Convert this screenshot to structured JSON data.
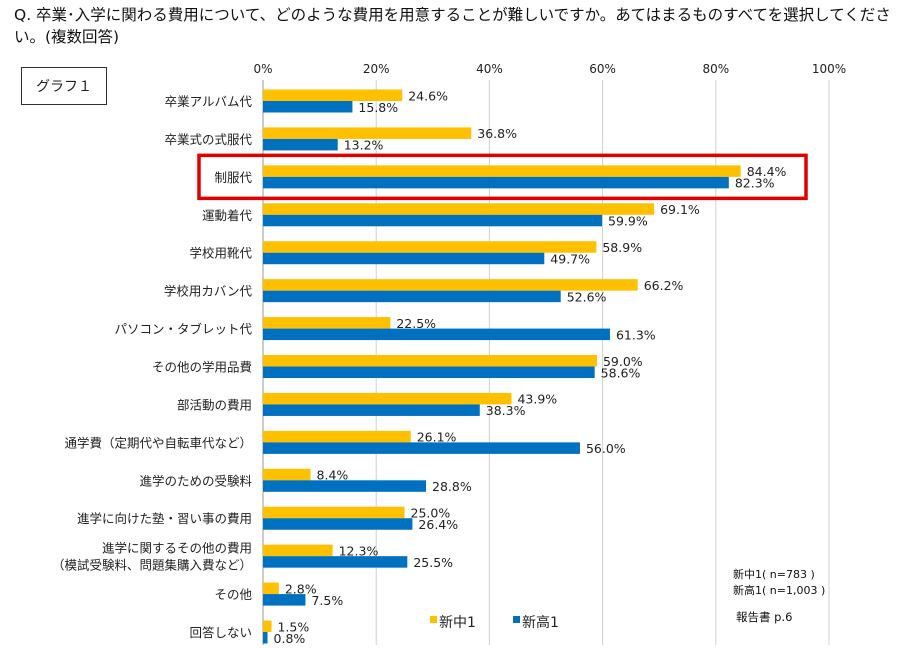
{
  "question": "Q. 卒業･入学に関わる費用について、どのような費用を用意することが難しいですか。あてはまるものすべてを選択してください。(複数回答)",
  "graph_label": "グラフ１",
  "notes": {
    "n1": "新中1( n=783 )",
    "n2": "新高1( n=1,003 )",
    "source": "報告書 p.6"
  },
  "highlight_category": "制服代",
  "chart_data": {
    "type": "bar",
    "orientation": "horizontal",
    "xlim": [
      0,
      100
    ],
    "ticks": [
      "0%",
      "20%",
      "40%",
      "60%",
      "80%",
      "100%"
    ],
    "grid": true,
    "legend": "bottom-center",
    "categories": [
      "卒業アルバム代",
      "卒業式の式服代",
      "制服代",
      "運動着代",
      "学校用靴代",
      "学校用カバン代",
      "パソコン・タブレット代",
      "その他の学用品費",
      "部活動の費用",
      "通学費（定期代や自転車代など）",
      "進学のための受験料",
      "進学に向けた塾・習い事の費用",
      "進学に関するその他の費用\n（模試受験料、問題集購入費など）",
      "その他",
      "回答しない"
    ],
    "series": [
      {
        "name": "新中1",
        "color": "#FFC000",
        "values": [
          24.6,
          36.8,
          84.4,
          69.1,
          58.9,
          66.2,
          22.5,
          59.0,
          43.9,
          26.1,
          8.4,
          25.0,
          12.3,
          2.8,
          1.5
        ]
      },
      {
        "name": "新高1",
        "color": "#0070C0",
        "values": [
          15.8,
          13.2,
          82.3,
          59.9,
          49.7,
          52.6,
          61.3,
          58.6,
          38.3,
          56.0,
          28.8,
          26.4,
          25.5,
          7.5,
          0.8
        ]
      }
    ]
  }
}
